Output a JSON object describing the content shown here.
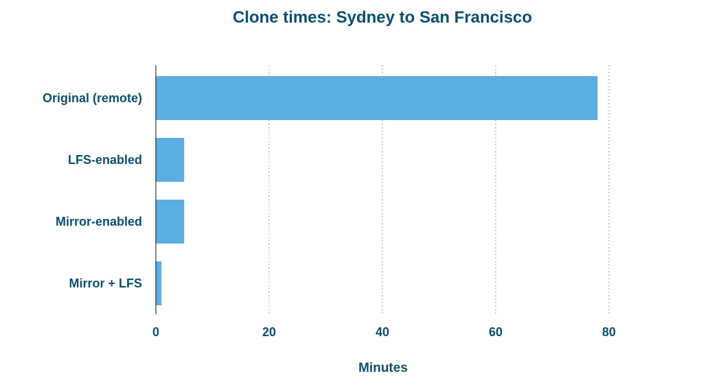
{
  "chart_data": {
    "type": "bar",
    "orientation": "horizontal",
    "title": "Clone times: Sydney to San Francisco",
    "xlabel": "Minutes",
    "ylabel": "",
    "categories": [
      "Original (remote)",
      "LFS-enabled",
      "Mirror-enabled",
      "Mirror + LFS"
    ],
    "values": [
      78,
      5,
      5,
      1
    ],
    "xlim": [
      0,
      80
    ],
    "x_ticks": [
      0,
      20,
      40,
      60,
      80
    ],
    "grid": "vertical dotted",
    "legend": "none"
  },
  "colors": {
    "bar": "#5aaee3",
    "text": "#0b4f71",
    "axis": "#333333",
    "grid": "#9a9a9a"
  }
}
